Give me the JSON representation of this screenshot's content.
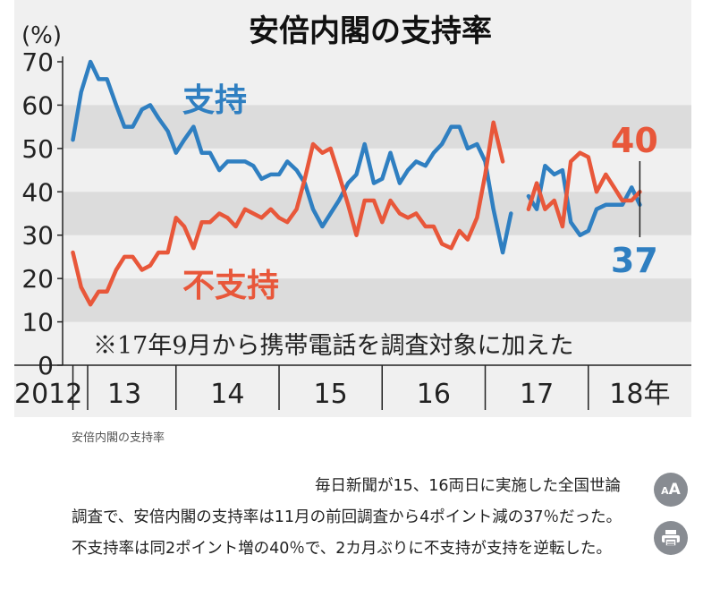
{
  "chart_data": {
    "type": "line",
    "title": "安倍内閣の支持率",
    "yunit": "(%)",
    "ylim": [
      0,
      70
    ],
    "yticks": [
      0,
      10,
      20,
      30,
      40,
      50,
      60,
      70
    ],
    "grid_bands": [
      [
        10,
        20
      ],
      [
        30,
        40
      ],
      [
        50,
        60
      ]
    ],
    "xlim": [
      2012.9,
      2019.0
    ],
    "xtick_labels": [
      {
        "label": "2012",
        "x": 2012.95
      },
      {
        "label": "13",
        "x": 2013.5
      },
      {
        "label": "14",
        "x": 2014.5
      },
      {
        "label": "15",
        "x": 2015.5
      },
      {
        "label": "16",
        "x": 2016.5
      },
      {
        "label": "17",
        "x": 2017.5
      },
      {
        "label": "18年",
        "x": 2018.5
      }
    ],
    "xtick_separators": [
      2013.0,
      2014.0,
      2015.0,
      2016.0,
      2017.0,
      2018.0
    ],
    "note": "※17年9月から携帯電話を調査対象に加えた",
    "series": [
      {
        "name": "支持",
        "color": "#2f7fc1",
        "segments": [
          [
            [
              2013.0,
              52
            ],
            [
              2013.08,
              63
            ],
            [
              2013.17,
              70
            ],
            [
              2013.25,
              66
            ],
            [
              2013.33,
              66
            ],
            [
              2013.42,
              60
            ],
            [
              2013.5,
              55
            ],
            [
              2013.58,
              55
            ],
            [
              2013.67,
              59
            ],
            [
              2013.75,
              60
            ],
            [
              2013.83,
              57
            ],
            [
              2013.92,
              54
            ],
            [
              2014.0,
              49
            ],
            [
              2014.08,
              52
            ],
            [
              2014.17,
              55
            ],
            [
              2014.25,
              49
            ],
            [
              2014.33,
              49
            ],
            [
              2014.42,
              45
            ],
            [
              2014.5,
              47
            ],
            [
              2014.58,
              47
            ],
            [
              2014.67,
              47
            ],
            [
              2014.75,
              46
            ],
            [
              2014.83,
              43
            ],
            [
              2014.92,
              44
            ],
            [
              2015.0,
              44
            ],
            [
              2015.08,
              47
            ],
            [
              2015.17,
              45
            ],
            [
              2015.25,
              42
            ],
            [
              2015.33,
              36
            ],
            [
              2015.42,
              32
            ],
            [
              2015.5,
              35
            ],
            [
              2015.58,
              38
            ],
            [
              2015.67,
              42
            ],
            [
              2015.75,
              44
            ],
            [
              2015.83,
              51
            ],
            [
              2015.92,
              42
            ],
            [
              2016.0,
              43
            ],
            [
              2016.08,
              49
            ],
            [
              2016.17,
              42
            ],
            [
              2016.25,
              45
            ],
            [
              2016.33,
              47
            ],
            [
              2016.42,
              46
            ],
            [
              2016.5,
              49
            ],
            [
              2016.58,
              51
            ],
            [
              2016.67,
              55
            ],
            [
              2016.75,
              55
            ],
            [
              2016.83,
              50
            ],
            [
              2016.92,
              51
            ],
            [
              2017.0,
              47
            ],
            [
              2017.08,
              36
            ],
            [
              2017.17,
              26
            ],
            [
              2017.25,
              35
            ]
          ],
          [
            [
              2017.42,
              39
            ],
            [
              2017.5,
              36
            ],
            [
              2017.58,
              46
            ],
            [
              2017.67,
              44
            ],
            [
              2017.75,
              45
            ],
            [
              2017.83,
              33
            ],
            [
              2017.92,
              30
            ],
            [
              2018.0,
              31
            ],
            [
              2018.08,
              36
            ],
            [
              2018.17,
              37
            ],
            [
              2018.25,
              37
            ],
            [
              2018.33,
              37
            ],
            [
              2018.42,
              41
            ],
            [
              2018.5,
              37
            ]
          ]
        ],
        "label_value": "37"
      },
      {
        "name": "不支持",
        "color": "#e8573a",
        "segments": [
          [
            [
              2013.0,
              26
            ],
            [
              2013.08,
              18
            ],
            [
              2013.17,
              14
            ],
            [
              2013.25,
              17
            ],
            [
              2013.33,
              17
            ],
            [
              2013.42,
              22
            ],
            [
              2013.5,
              25
            ],
            [
              2013.58,
              25
            ],
            [
              2013.67,
              22
            ],
            [
              2013.75,
              23
            ],
            [
              2013.83,
              26
            ],
            [
              2013.92,
              26
            ],
            [
              2014.0,
              34
            ],
            [
              2014.08,
              32
            ],
            [
              2014.17,
              27
            ],
            [
              2014.25,
              33
            ],
            [
              2014.33,
              33
            ],
            [
              2014.42,
              35
            ],
            [
              2014.5,
              34
            ],
            [
              2014.58,
              32
            ],
            [
              2014.67,
              36
            ],
            [
              2014.75,
              35
            ],
            [
              2014.83,
              34
            ],
            [
              2014.92,
              36
            ],
            [
              2015.0,
              34
            ],
            [
              2015.08,
              33
            ],
            [
              2015.17,
              36
            ],
            [
              2015.25,
              43
            ],
            [
              2015.33,
              51
            ],
            [
              2015.42,
              49
            ],
            [
              2015.5,
              50
            ],
            [
              2015.58,
              44
            ],
            [
              2015.67,
              37
            ],
            [
              2015.75,
              30
            ],
            [
              2015.83,
              38
            ],
            [
              2015.92,
              38
            ],
            [
              2016.0,
              33
            ],
            [
              2016.08,
              38
            ],
            [
              2016.17,
              35
            ],
            [
              2016.25,
              34
            ],
            [
              2016.33,
              35
            ],
            [
              2016.42,
              32
            ],
            [
              2016.5,
              32
            ],
            [
              2016.58,
              28
            ],
            [
              2016.67,
              27
            ],
            [
              2016.75,
              31
            ],
            [
              2016.83,
              29
            ],
            [
              2016.92,
              34
            ],
            [
              2017.0,
              44
            ],
            [
              2017.08,
              56
            ],
            [
              2017.17,
              47
            ]
          ],
          [
            [
              2017.42,
              36
            ],
            [
              2017.5,
              42
            ],
            [
              2017.58,
              36
            ],
            [
              2017.67,
              38
            ],
            [
              2017.75,
              32
            ],
            [
              2017.83,
              47
            ],
            [
              2017.92,
              49
            ],
            [
              2018.0,
              48
            ],
            [
              2018.08,
              40
            ],
            [
              2018.17,
              44
            ],
            [
              2018.25,
              41
            ],
            [
              2018.33,
              38
            ],
            [
              2018.42,
              38
            ],
            [
              2018.5,
              40
            ]
          ]
        ],
        "label_value": "40"
      }
    ]
  },
  "caption": "安倍内閣の支持率",
  "article": {
    "paragraph": "毎日新聞が15、16両日に実施した全国世論調査で、安倍内閣の支持率は11月の前回調査から4ポイント減の37％だった。不支持率は同2ポイント増の40％で、2カ月ぶりに不支持が支持を逆転した。"
  },
  "buttons": {
    "font_size_small": "A",
    "font_size_big": "A",
    "print_icon": "printer-icon"
  },
  "colors": {
    "panel_bg": "#f0f0f0",
    "band": "#dcdcdc",
    "support": "#2f7fc1",
    "disapprove": "#e8573a"
  }
}
